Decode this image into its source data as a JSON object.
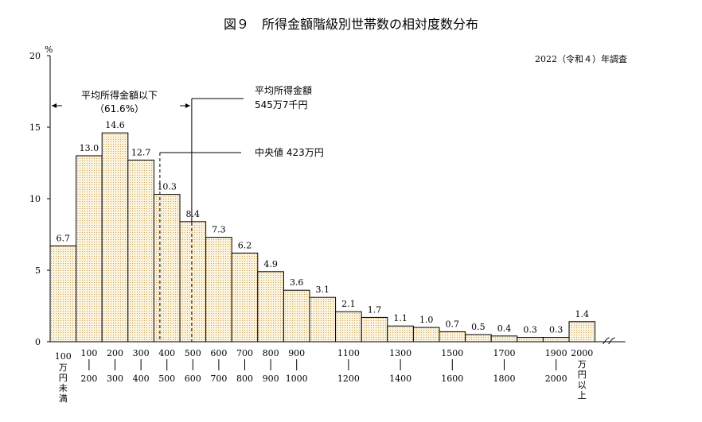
{
  "figure": {
    "title": "図９　所得金額階級別世帯数の相対度数分布",
    "survey_note": "2022（令和４）年調査",
    "y_unit": "%"
  },
  "annotations": {
    "mean_below_label": "平均所得金額以下",
    "mean_below_pct": "（61.6%）",
    "mean_label_line1": "平均所得金額",
    "mean_label_line2": "545万7千円",
    "median_label": "中央値 423万円"
  },
  "chart_data": {
    "type": "bar",
    "categories": [
      "100万円未満",
      "100-200",
      "200-300",
      "300-400",
      "400-500",
      "500-600",
      "600-700",
      "700-800",
      "800-900",
      "900-1000",
      "1000-1100",
      "1100-1200",
      "1200-1300",
      "1300-1400",
      "1400-1500",
      "1500-1600",
      "1600-1700",
      "1700-1800",
      "1800-1900",
      "1900-2000",
      "2000万円以上"
    ],
    "values": [
      6.7,
      13.0,
      14.6,
      12.7,
      10.3,
      8.4,
      7.3,
      6.2,
      4.9,
      3.6,
      3.1,
      2.1,
      1.7,
      1.1,
      1.0,
      0.7,
      0.5,
      0.4,
      0.3,
      0.3,
      1.4
    ],
    "value_labels": [
      "6.7",
      "13.0",
      "14.6",
      "12.7",
      "10.3",
      "8.4",
      "7.3",
      "6.2",
      "4.9",
      "3.6",
      "3.1",
      "2.1",
      "1.7",
      "1.1",
      "1.0",
      "0.7",
      "0.5",
      "0.4",
      "0.3",
      "0.3",
      "1.4"
    ],
    "ylim": [
      0,
      20
    ],
    "yticks": [
      "0",
      "5",
      "10",
      "15",
      "20"
    ],
    "mean": 545.7,
    "median": 423,
    "pct_at_or_below_mean": 61.6,
    "xtick_labels": [
      {
        "top": "100",
        "bottom": "万円未満"
      },
      {
        "top": "100",
        "bottom": "200"
      },
      {
        "top": "200",
        "bottom": "300"
      },
      {
        "top": "300",
        "bottom": "400"
      },
      {
        "top": "400",
        "bottom": "500"
      },
      {
        "top": "500",
        "bottom": "600"
      },
      {
        "top": "600",
        "bottom": "700"
      },
      {
        "top": "700",
        "bottom": "800"
      },
      {
        "top": "800",
        "bottom": "900"
      },
      {
        "top": "900",
        "bottom": "1000"
      },
      {
        "top": "1100",
        "bottom": "1200"
      },
      {
        "top": "1300",
        "bottom": "1400"
      },
      {
        "top": "1500",
        "bottom": "1600"
      },
      {
        "top": "1700",
        "bottom": "1800"
      },
      {
        "top": "1900",
        "bottom": "2000"
      },
      {
        "top": "2000",
        "bottom": "万円以上"
      }
    ],
    "colors": {
      "bar_fill": "#fbf3dc",
      "dot": "#c8a25a",
      "stroke": "#000000"
    }
  }
}
